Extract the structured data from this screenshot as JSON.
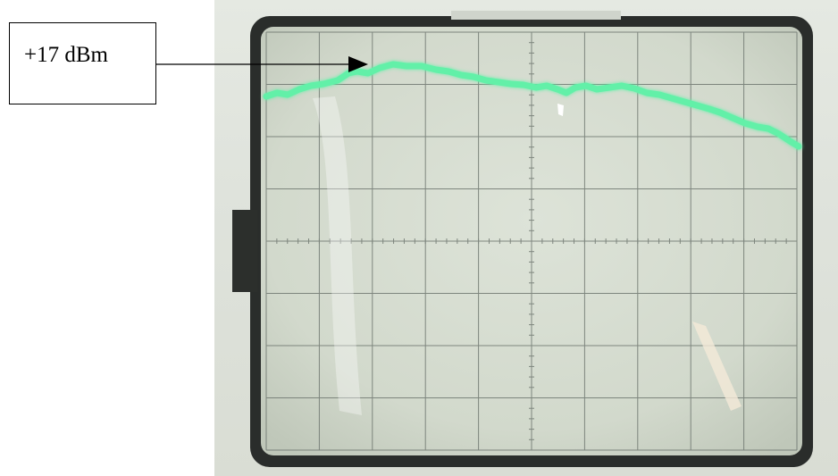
{
  "callout": {
    "label": "+17 dBm"
  },
  "scope": {
    "graticule": {
      "columns": 10,
      "rows": 8,
      "minor_ticks_per_division": 5
    },
    "trace": {
      "color": "#62f0a8",
      "glow_color": "#b8ffd8"
    },
    "screen_color": "#d6ddd0",
    "bezel_color": "#2a2d2b",
    "grid_color": "#6f7770"
  }
}
